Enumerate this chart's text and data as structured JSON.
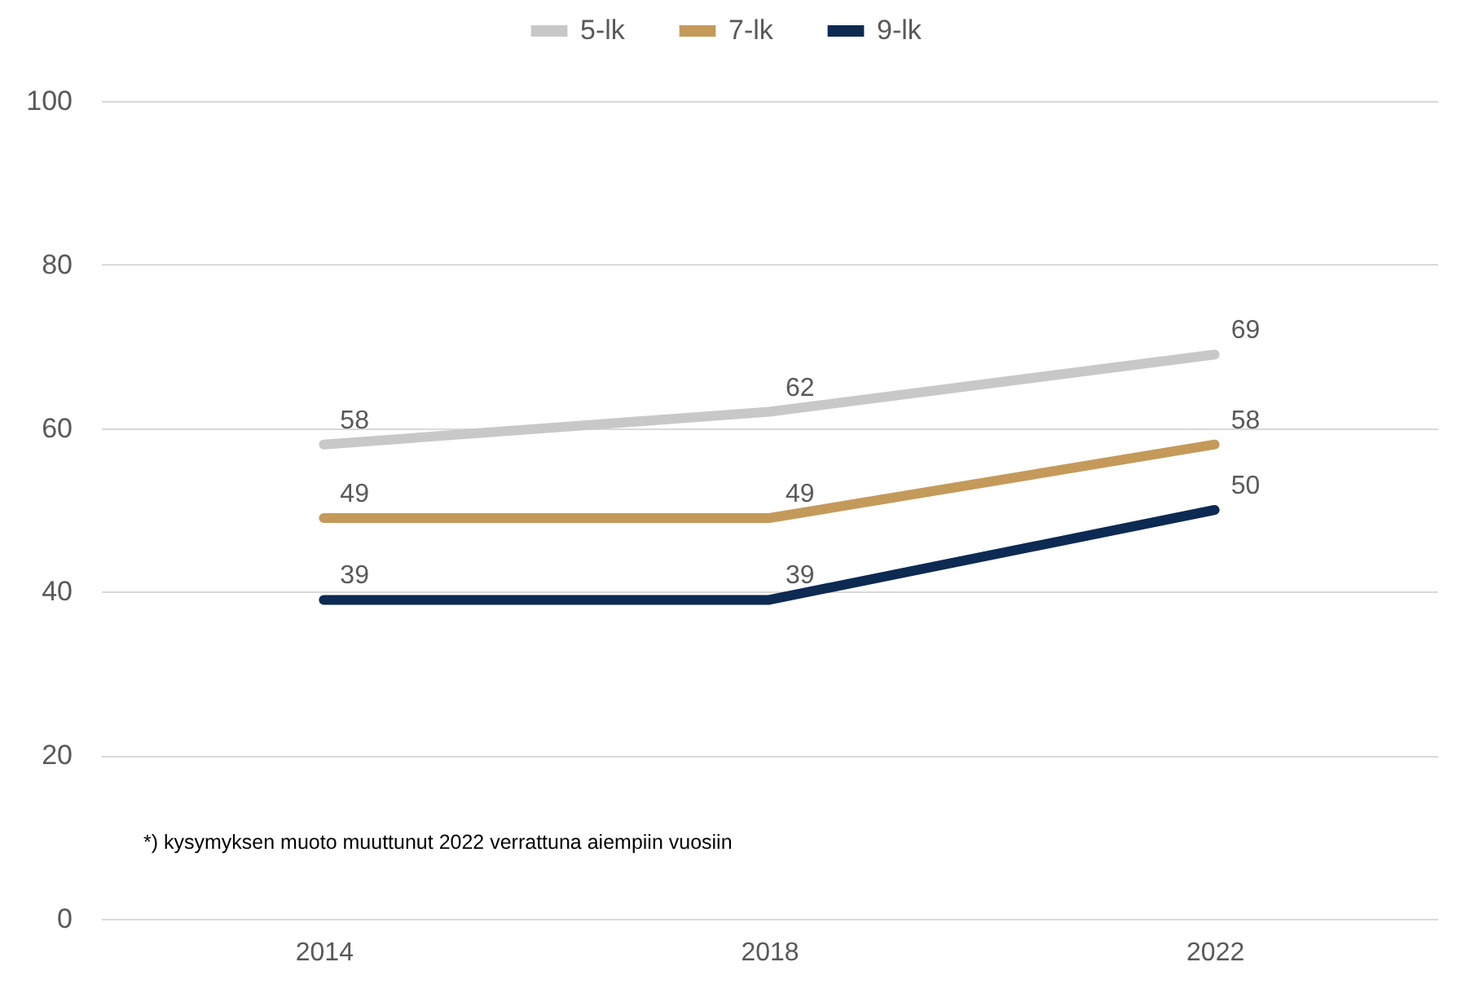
{
  "chart_data": {
    "type": "line",
    "categories": [
      "2014",
      "2018",
      "2022"
    ],
    "series": [
      {
        "name": "5-lk",
        "color": "#c8c8c8",
        "values": [
          58,
          62,
          69
        ]
      },
      {
        "name": "7-lk",
        "color": "#c49a5a",
        "values": [
          49,
          49,
          58
        ]
      },
      {
        "name": "9-lk",
        "color": "#0d2a52",
        "values": [
          39,
          39,
          50
        ]
      }
    ],
    "ylim": [
      0,
      100
    ],
    "yticks": [
      0,
      20,
      40,
      60,
      80,
      100
    ],
    "grid": "y",
    "legend": "top",
    "data_labels": true,
    "marker": "none",
    "line_style": "solid",
    "annotations": [
      "*) kysymyksen muoto muuttunut 2022 verrattuna aiempiin vuosiin"
    ]
  }
}
